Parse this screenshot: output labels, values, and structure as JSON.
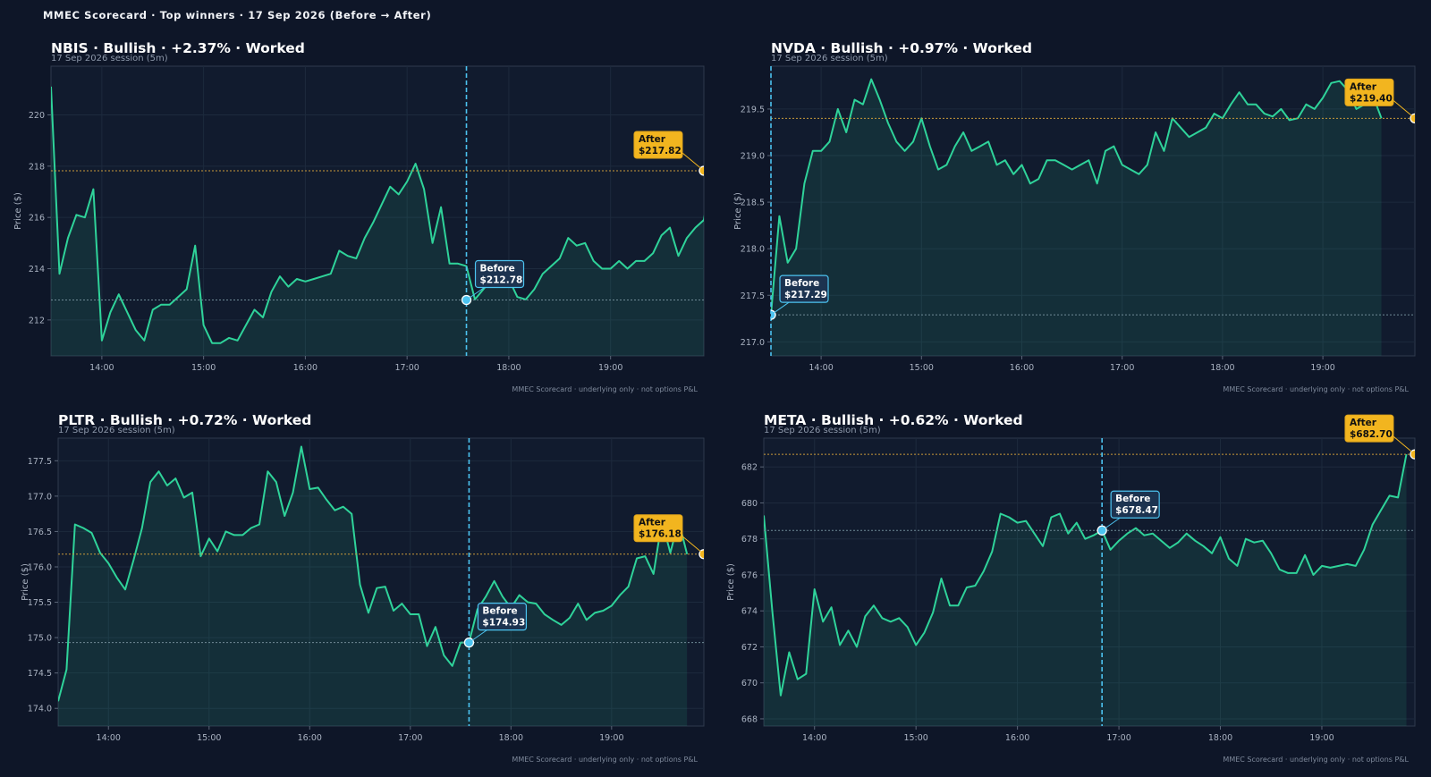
{
  "page_title": "MMEC Scorecard · Top winners · 17 Sep 2026 (Before → After)",
  "colors": {
    "background": "#0e1628",
    "panel": "#111b2e",
    "line": "#2fd39a",
    "before": "#4cc3f0",
    "after": "#f2b51f",
    "after_line": "#c99a3a",
    "before_line": "#6f8a96"
  },
  "chart_data": [
    {
      "type": "line",
      "title": "NBIS · Bullish · +2.37% · Worked",
      "subtitle": "17 Sep 2026 session (5m)",
      "ylabel": "Price ($)",
      "footer": "MMEC Scorecard · underlying only · not options P&L",
      "x_labels": [
        "14:00",
        "15:00",
        "16:00",
        "17:00",
        "18:00",
        "19:00"
      ],
      "y_ticks": [
        "212",
        "214",
        "216",
        "218",
        "220"
      ],
      "y_tick_values": [
        212,
        214,
        216,
        218,
        220
      ],
      "ylim": [
        210.6,
        221.9
      ],
      "xlim": [
        13.5,
        19.917
      ],
      "fill_base": 210.6,
      "before": {
        "time": "17:35",
        "label": "Before",
        "price_label": "$212.78",
        "price": 212.78
      },
      "after": {
        "time": "19:55",
        "label": "After",
        "price_label": "$217.82",
        "price": 217.82
      },
      "series": [
        {
          "x_start": 13.5,
          "step_minutes": 5,
          "values": [
            221.1,
            213.8,
            215.2,
            216.1,
            216.0,
            217.1,
            211.2,
            212.3,
            213.0,
            212.3,
            211.6,
            211.2,
            212.4,
            212.6,
            212.6,
            212.9,
            213.2,
            214.9,
            211.8,
            211.1,
            211.1,
            211.3,
            211.2,
            211.8,
            212.4,
            212.1,
            213.1,
            213.7,
            213.3,
            213.6,
            213.5,
            213.6,
            213.7,
            213.8,
            214.7,
            214.5,
            214.4,
            215.2,
            215.8,
            216.5,
            217.2,
            216.9,
            217.4,
            218.1,
            217.1,
            215.0,
            216.4,
            214.2,
            214.2,
            214.1,
            212.8,
            213.2,
            213.6,
            214.0,
            213.6,
            212.9,
            212.8,
            213.2,
            213.8,
            214.1,
            214.4,
            215.2,
            214.9,
            215.0,
            214.3,
            214.0,
            214.0,
            214.3,
            214.0,
            214.3,
            214.3,
            214.6,
            215.3,
            215.6,
            214.5,
            215.2,
            215.6,
            215.9,
            217.82
          ]
        }
      ]
    },
    {
      "type": "line",
      "title": "NVDA · Bullish · +0.97% · Worked",
      "subtitle": "17 Sep 2026 session (5m)",
      "ylabel": "Price ($)",
      "footer": "MMEC Scorecard · underlying only · not options P&L",
      "x_labels": [
        "14:00",
        "15:00",
        "16:00",
        "17:00",
        "18:00",
        "19:00"
      ],
      "y_ticks": [
        "217.0",
        "217.5",
        "218.0",
        "218.5",
        "219.0",
        "219.5"
      ],
      "y_tick_values": [
        217.0,
        217.5,
        218.0,
        218.5,
        219.0,
        219.5
      ],
      "ylim": [
        216.85,
        219.96
      ],
      "xlim": [
        13.5,
        19.917
      ],
      "fill_base": 216.85,
      "before": {
        "time": "13:30",
        "label": "Before",
        "price_label": "$217.29",
        "price": 217.29
      },
      "after": {
        "time": "19:55",
        "label": "After",
        "price_label": "$219.40",
        "price": 219.4
      },
      "series": [
        {
          "x_start": 13.5,
          "step_minutes": 5,
          "values": [
            217.29,
            218.35,
            217.85,
            218.0,
            218.7,
            219.05,
            219.05,
            219.15,
            219.5,
            219.25,
            219.6,
            219.55,
            219.82,
            219.6,
            219.35,
            219.15,
            219.05,
            219.15,
            219.4,
            219.1,
            218.85,
            218.9,
            219.1,
            219.25,
            219.05,
            219.1,
            219.15,
            218.9,
            218.95,
            218.8,
            218.9,
            218.7,
            218.75,
            218.95,
            218.95,
            218.9,
            218.85,
            218.9,
            218.95,
            218.7,
            219.05,
            219.1,
            218.9,
            218.85,
            218.8,
            218.9,
            219.25,
            219.05,
            219.4,
            219.3,
            219.2,
            219.25,
            219.3,
            219.45,
            219.4,
            219.55,
            219.68,
            219.55,
            219.55,
            219.45,
            219.42,
            219.5,
            219.38,
            219.4,
            219.55,
            219.5,
            219.62,
            219.78,
            219.8,
            219.7,
            219.5,
            219.55,
            219.64,
            219.4
          ]
        }
      ]
    },
    {
      "type": "line",
      "title": "PLTR · Bullish · +0.72% · Worked",
      "subtitle": "17 Sep 2026 session (5m)",
      "ylabel": "Price ($)",
      "footer": "MMEC Scorecard · underlying only · not options P&L",
      "x_labels": [
        "14:00",
        "15:00",
        "16:00",
        "17:00",
        "18:00",
        "19:00"
      ],
      "y_ticks": [
        "174.0",
        "174.5",
        "175.0",
        "175.5",
        "176.0",
        "176.5",
        "177.0",
        "177.5"
      ],
      "y_tick_values": [
        174.0,
        174.5,
        175.0,
        175.5,
        176.0,
        176.5,
        177.0,
        177.5
      ],
      "ylim": [
        173.75,
        177.82
      ],
      "xlim": [
        13.5,
        19.917
      ],
      "fill_base": 173.75,
      "before": {
        "time": "17:35",
        "label": "Before",
        "price_label": "$174.93",
        "price": 174.93
      },
      "after": {
        "time": "19:55",
        "label": "After",
        "price_label": "$176.18",
        "price": 176.18
      },
      "series": [
        {
          "x_start": 13.5,
          "step_minutes": 5,
          "values": [
            174.1,
            174.55,
            176.6,
            176.55,
            176.48,
            176.2,
            176.05,
            175.85,
            175.68,
            176.1,
            176.55,
            177.2,
            177.35,
            177.15,
            177.25,
            176.98,
            177.05,
            176.15,
            176.4,
            176.22,
            176.5,
            176.45,
            176.45,
            176.55,
            176.6,
            177.35,
            177.2,
            176.72,
            177.05,
            177.7,
            177.1,
            177.12,
            176.95,
            176.8,
            176.85,
            176.75,
            175.75,
            175.35,
            175.7,
            175.72,
            175.38,
            175.48,
            175.33,
            175.33,
            174.88,
            175.15,
            174.75,
            174.6,
            174.93,
            174.93,
            175.4,
            175.58,
            175.8,
            175.58,
            175.42,
            175.6,
            175.5,
            175.48,
            175.33,
            175.25,
            175.18,
            175.28,
            175.48,
            175.25,
            175.35,
            175.38,
            175.45,
            175.6,
            175.72,
            176.12,
            176.15,
            175.9,
            176.65,
            176.2,
            176.65,
            176.18
          ]
        }
      ]
    },
    {
      "type": "line",
      "title": "META · Bullish · +0.62% · Worked",
      "subtitle": "17 Sep 2026 session (5m)",
      "ylabel": "Price ($)",
      "footer": "MMEC Scorecard · underlying only · not options P&L",
      "x_labels": [
        "14:00",
        "15:00",
        "16:00",
        "17:00",
        "18:00",
        "19:00"
      ],
      "y_ticks": [
        "668",
        "670",
        "672",
        "674",
        "676",
        "678",
        "680",
        "682"
      ],
      "y_tick_values": [
        668,
        670,
        672,
        674,
        676,
        678,
        680,
        682
      ],
      "ylim": [
        667.6,
        683.6
      ],
      "xlim": [
        13.5,
        19.917
      ],
      "fill_base": 667.6,
      "before": {
        "time": "16:50",
        "label": "Before",
        "price_label": "$678.47",
        "price": 678.47
      },
      "after": {
        "time": "19:55",
        "label": "After",
        "price_label": "$682.70",
        "price": 682.7
      },
      "series": [
        {
          "x_start": 13.5,
          "step_minutes": 5,
          "values": [
            679.3,
            674.0,
            669.3,
            671.7,
            670.2,
            670.5,
            675.2,
            673.4,
            674.2,
            672.1,
            672.9,
            672.0,
            673.7,
            674.3,
            673.6,
            673.4,
            673.6,
            673.1,
            672.1,
            672.8,
            673.9,
            675.8,
            674.3,
            674.3,
            675.3,
            675.4,
            676.2,
            677.3,
            679.4,
            679.2,
            678.9,
            679.0,
            678.3,
            677.6,
            679.2,
            679.4,
            678.3,
            678.9,
            678.0,
            678.2,
            678.47,
            677.4,
            677.9,
            678.3,
            678.6,
            678.2,
            678.3,
            677.9,
            677.5,
            677.8,
            678.3,
            677.9,
            677.6,
            677.2,
            678.1,
            676.9,
            676.5,
            678.0,
            677.8,
            677.9,
            677.2,
            676.3,
            676.1,
            676.1,
            677.1,
            676.0,
            676.5,
            676.4,
            676.5,
            676.6,
            676.5,
            677.4,
            678.8,
            679.6,
            680.4,
            680.3,
            682.7
          ]
        }
      ]
    }
  ]
}
